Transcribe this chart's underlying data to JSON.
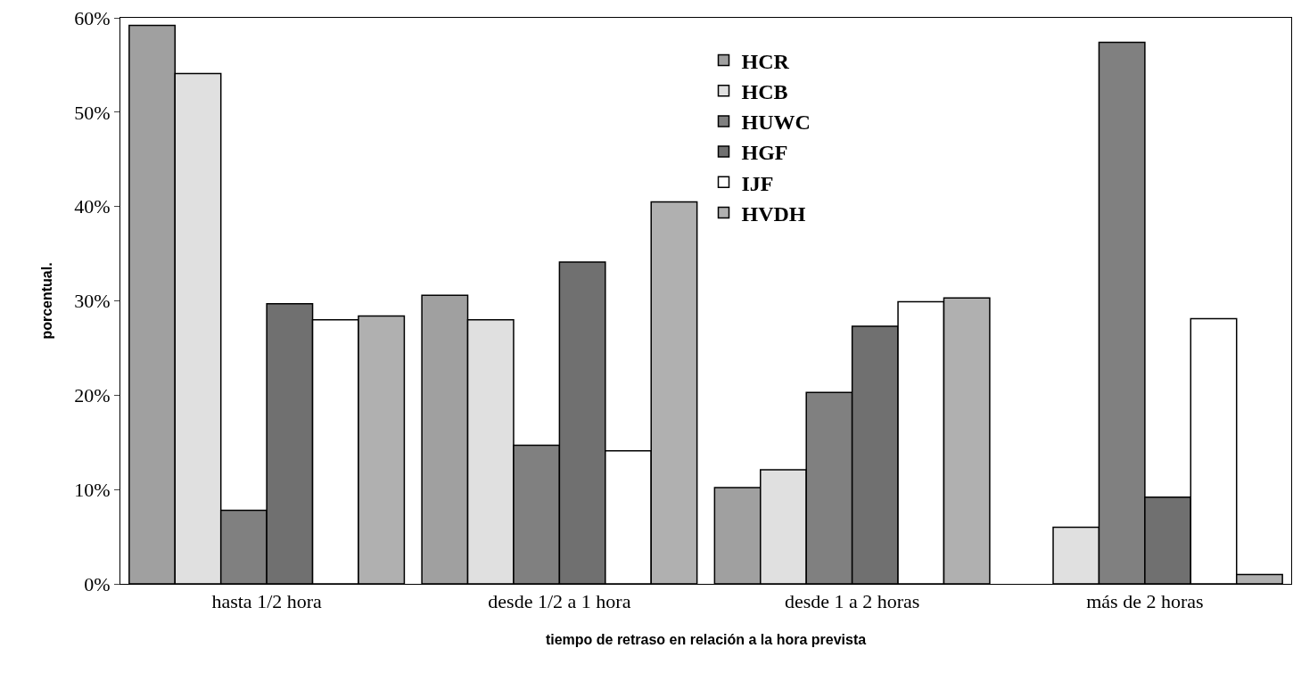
{
  "chart_data": {
    "type": "bar",
    "xlabel": "tiempo de retraso en relación a la hora prevista",
    "ylabel": "porcentual.",
    "categories": [
      "hasta 1/2 hora",
      "desde 1/2 a 1 hora",
      "desde 1 a 2 horas",
      "más de 2 horas"
    ],
    "series": [
      {
        "name": "HCR",
        "color": "#a0a0a0",
        "values": [
          59.2,
          30.6,
          10.2,
          null
        ]
      },
      {
        "name": "HCB",
        "color": "#e0e0e0",
        "values": [
          54.1,
          28.0,
          12.1,
          6.0
        ]
      },
      {
        "name": "HUWC",
        "color": "#808080",
        "values": [
          7.8,
          14.7,
          20.3,
          57.4
        ]
      },
      {
        "name": "HGF",
        "color": "#707070",
        "values": [
          29.7,
          34.1,
          27.3,
          9.2
        ]
      },
      {
        "name": "IJF",
        "color": "#ffffff",
        "values": [
          28.0,
          14.1,
          29.9,
          28.1
        ]
      },
      {
        "name": "HVDH",
        "color": "#b0b0b0",
        "values": [
          28.4,
          40.5,
          30.3,
          1.0
        ]
      }
    ],
    "ylim": [
      0,
      60
    ],
    "yticks": [
      {
        "value": 0,
        "label": "0%"
      },
      {
        "value": 10,
        "label": "10%"
      },
      {
        "value": 20,
        "label": "20%"
      },
      {
        "value": 30,
        "label": "30%"
      },
      {
        "value": 40,
        "label": "40%"
      },
      {
        "value": 50,
        "label": "50%"
      },
      {
        "value": 60,
        "label": "60%"
      }
    ],
    "grid": false,
    "legend": "top"
  }
}
